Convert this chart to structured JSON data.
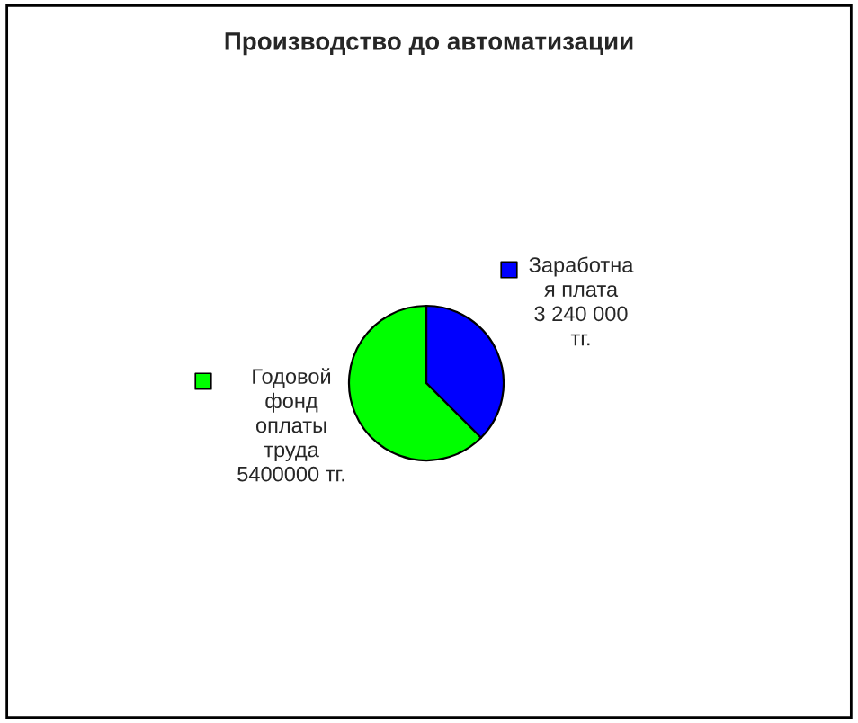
{
  "chart_data": {
    "type": "pie",
    "title": "Производство до автоматизации",
    "categories": [
      "Заработна\nя плата",
      "Годовой\nфонд\nоплаты\nтруда"
    ],
    "values": [
      3240000,
      5400000
    ],
    "colors": [
      "#0000ff",
      "#00ff00"
    ],
    "value_labels": [
      "3 240 000\nтг.",
      "5400000 тг."
    ],
    "legend": "center"
  }
}
